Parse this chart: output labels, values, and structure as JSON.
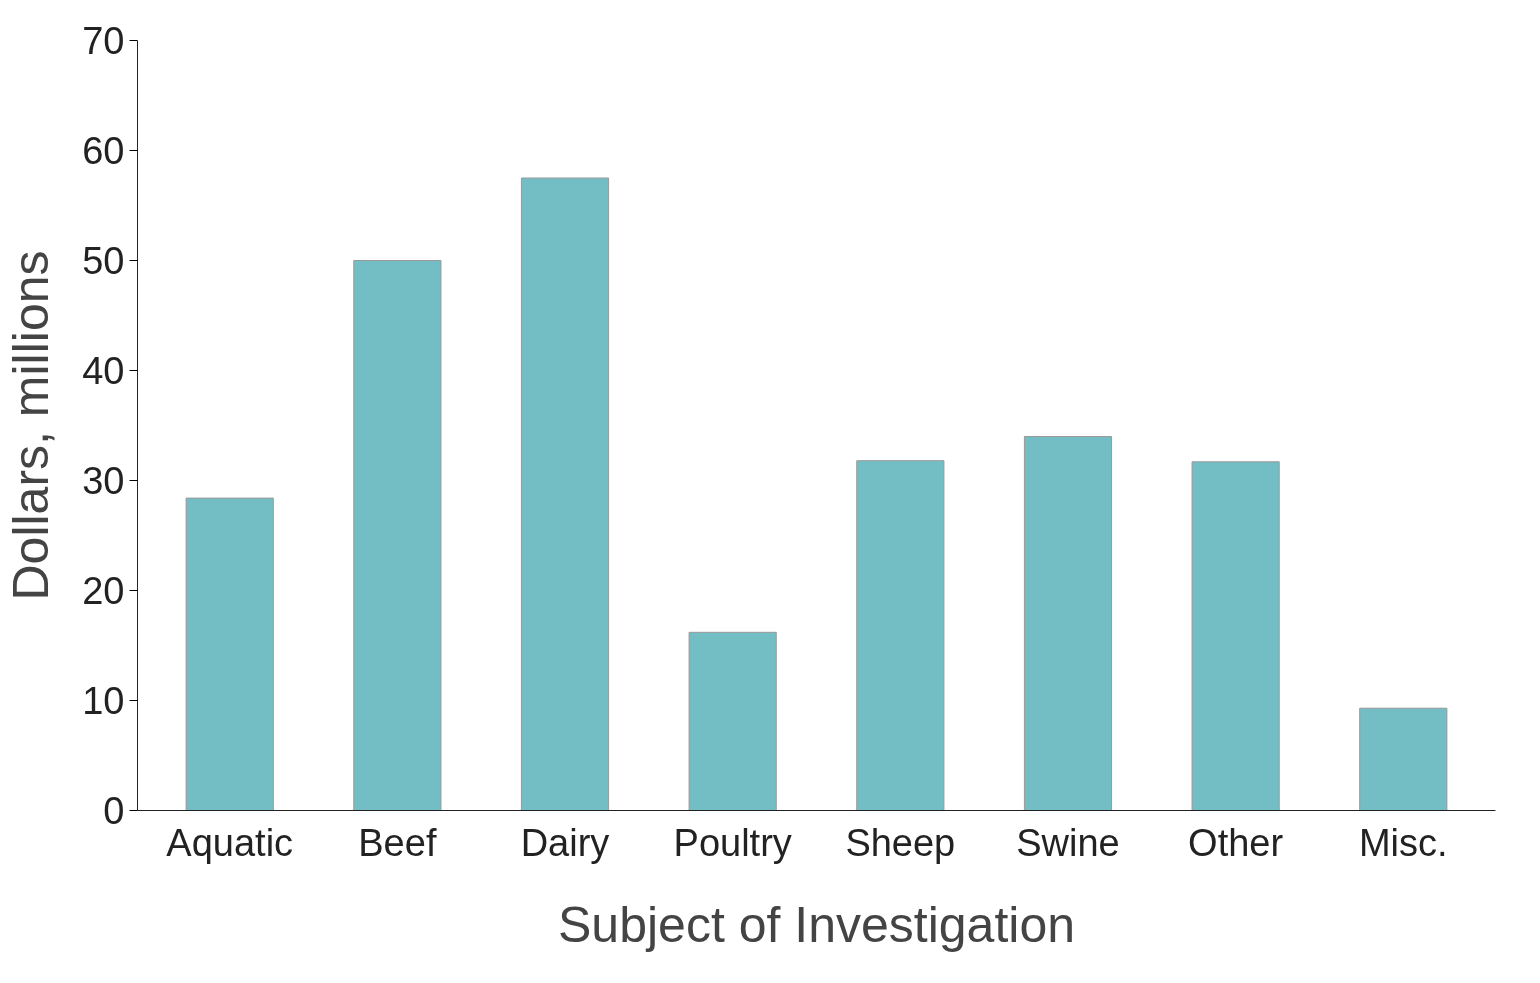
{
  "chart_data": {
    "type": "bar",
    "xlabel": "Subject of Investigation",
    "ylabel": "Dollars, millions",
    "categories": [
      "Aquatic",
      "Beef",
      "Dairy",
      "Poultry",
      "Sheep",
      "Swine",
      "Other",
      "Misc."
    ],
    "values": [
      28.4,
      50,
      57.5,
      16.2,
      31.8,
      34,
      31.7,
      9.3
    ],
    "color": "#72bec4",
    "ylim": [
      0,
      70
    ],
    "yticks": [
      0,
      10,
      20,
      30,
      40,
      50,
      60,
      70
    ],
    "grid": false
  }
}
